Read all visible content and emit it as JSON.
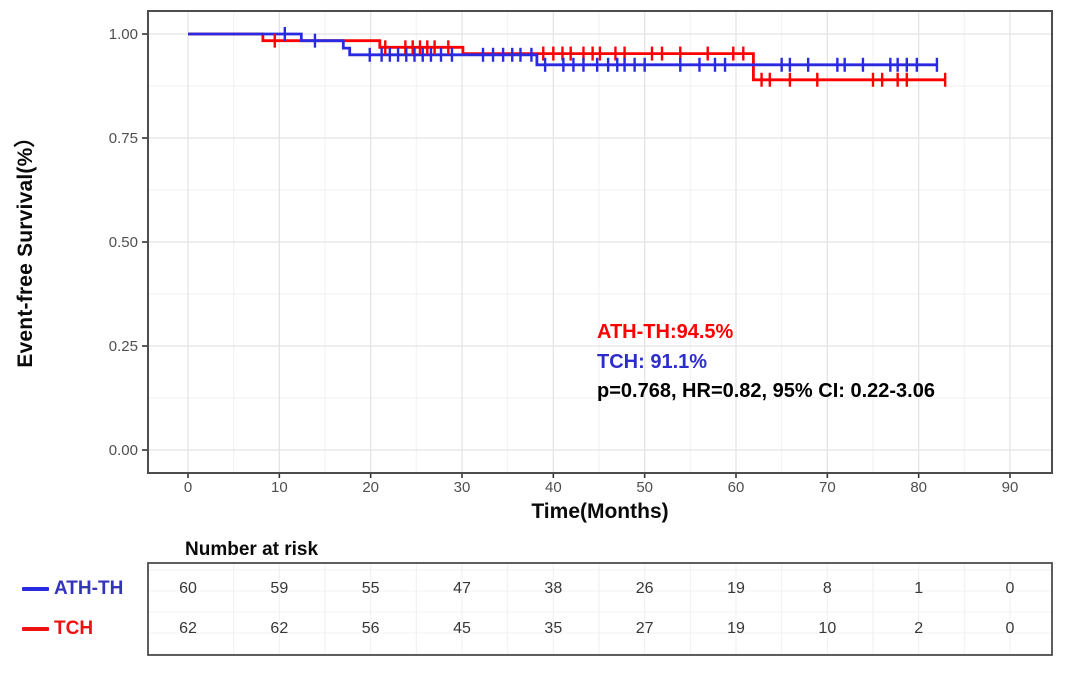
{
  "colors": {
    "red_line": "#ff0000",
    "blue_line": "#2a2ae0",
    "blue_legend_text": "#3434bb",
    "blue_annotation_text": "#2d2dc9",
    "panel_border": "#4d4d4d",
    "grid_major": "#e4e4e4",
    "grid_minor": "#f1f1f1",
    "tick_label": "#4f4f4f"
  },
  "chart_data": {
    "type": "line",
    "subtype": "kaplan-meier-step",
    "title": "",
    "xlabel": "Time(Months)",
    "ylabel": "Event-free Survival(%）",
    "xlim": [
      -4.4,
      94.6
    ],
    "ylim": [
      -0.057,
      1.057
    ],
    "grid": true,
    "legend_position": "bottom-left (next to risk table)",
    "x_ticks": [
      0,
      10,
      20,
      30,
      40,
      50,
      60,
      70,
      80,
      90
    ],
    "y_ticks": [
      {
        "value": 1.0,
        "label": "1.00"
      },
      {
        "value": 0.75,
        "label": "0.75"
      },
      {
        "value": 0.5,
        "label": "0.50"
      },
      {
        "value": 0.25,
        "label": "0.25"
      },
      {
        "value": 0.0,
        "label": "0.00"
      }
    ],
    "series": [
      {
        "name": "TCH",
        "color": "#ff0000",
        "step_points": [
          [
            0,
            1.0
          ],
          [
            8.2,
            1.0
          ],
          [
            8.2,
            0.984
          ],
          [
            21.0,
            0.984
          ],
          [
            21.0,
            0.968
          ],
          [
            30.1,
            0.968
          ],
          [
            30.1,
            0.953
          ],
          [
            61.9,
            0.953
          ],
          [
            61.9,
            0.89
          ],
          [
            82.9,
            0.89
          ]
        ],
        "censor_marks": [
          [
            9.5,
            0.984
          ],
          [
            21.6,
            0.968
          ],
          [
            23.8,
            0.968
          ],
          [
            24.6,
            0.968
          ],
          [
            25.4,
            0.968
          ],
          [
            26.2,
            0.968
          ],
          [
            27.0,
            0.968
          ],
          [
            28.5,
            0.968
          ],
          [
            38.9,
            0.953
          ],
          [
            40.0,
            0.953
          ],
          [
            41.0,
            0.953
          ],
          [
            41.9,
            0.953
          ],
          [
            43.3,
            0.953
          ],
          [
            44.3,
            0.953
          ],
          [
            45.1,
            0.953
          ],
          [
            46.8,
            0.953
          ],
          [
            47.8,
            0.953
          ],
          [
            50.8,
            0.953
          ],
          [
            51.9,
            0.953
          ],
          [
            53.9,
            0.953
          ],
          [
            56.9,
            0.953
          ],
          [
            59.7,
            0.953
          ],
          [
            60.8,
            0.953
          ],
          [
            62.8,
            0.89
          ],
          [
            63.7,
            0.89
          ],
          [
            65.9,
            0.89
          ],
          [
            68.9,
            0.89
          ],
          [
            75.0,
            0.89
          ],
          [
            76.0,
            0.89
          ],
          [
            77.7,
            0.89
          ],
          [
            78.7,
            0.89
          ],
          [
            82.9,
            0.89
          ]
        ]
      },
      {
        "name": "ATH-TH",
        "color": "#2a2ae0",
        "step_points": [
          [
            0,
            1.0
          ],
          [
            12.4,
            1.0
          ],
          [
            12.4,
            0.984
          ],
          [
            17.0,
            0.984
          ],
          [
            17.0,
            0.966
          ],
          [
            17.7,
            0.966
          ],
          [
            17.7,
            0.95
          ],
          [
            38.2,
            0.95
          ],
          [
            38.2,
            0.926
          ],
          [
            82.0,
            0.926
          ]
        ],
        "censor_marks": [
          [
            10.6,
            1.0
          ],
          [
            13.9,
            0.984
          ],
          [
            19.9,
            0.95
          ],
          [
            21.2,
            0.95
          ],
          [
            22.1,
            0.95
          ],
          [
            23.0,
            0.95
          ],
          [
            23.9,
            0.95
          ],
          [
            24.8,
            0.95
          ],
          [
            25.7,
            0.95
          ],
          [
            26.6,
            0.95
          ],
          [
            27.7,
            0.95
          ],
          [
            28.9,
            0.95
          ],
          [
            32.3,
            0.95
          ],
          [
            33.4,
            0.95
          ],
          [
            34.5,
            0.95
          ],
          [
            35.5,
            0.95
          ],
          [
            36.4,
            0.95
          ],
          [
            37.6,
            0.95
          ],
          [
            39.1,
            0.926
          ],
          [
            41.1,
            0.926
          ],
          [
            42.2,
            0.926
          ],
          [
            43.3,
            0.926
          ],
          [
            44.8,
            0.926
          ],
          [
            46.0,
            0.926
          ],
          [
            47.0,
            0.926
          ],
          [
            47.8,
            0.926
          ],
          [
            48.9,
            0.926
          ],
          [
            50.0,
            0.926
          ],
          [
            53.9,
            0.926
          ],
          [
            56.0,
            0.926
          ],
          [
            57.7,
            0.926
          ],
          [
            58.8,
            0.926
          ],
          [
            65.0,
            0.926
          ],
          [
            65.9,
            0.926
          ],
          [
            67.9,
            0.926
          ],
          [
            71.1,
            0.926
          ],
          [
            71.9,
            0.926
          ],
          [
            73.9,
            0.926
          ],
          [
            76.9,
            0.926
          ],
          [
            77.7,
            0.926
          ],
          [
            78.7,
            0.926
          ],
          [
            79.8,
            0.926
          ],
          [
            82.0,
            0.926
          ]
        ]
      }
    ]
  },
  "annotation": {
    "line1": {
      "text": "ATH-TH:94.5%",
      "color": "#ff0000"
    },
    "line2": {
      "text": "TCH: 91.1%",
      "color": "#2d2dc9"
    },
    "line3": {
      "text": "p=0.768, HR=0.82, 95% CI: 0.22-3.06",
      "color": "#000000"
    }
  },
  "risk_table": {
    "title": "Number at risk",
    "time_points": [
      0,
      10,
      20,
      30,
      40,
      50,
      60,
      70,
      80,
      90
    ],
    "rows": [
      {
        "label": "ATH-TH",
        "color": "#3434bb",
        "line_color": "#2a2ae0",
        "values": [
          60,
          59,
          55,
          47,
          38,
          26,
          19,
          8,
          1,
          0
        ]
      },
      {
        "label": "TCH",
        "color": "#ee1111",
        "line_color": "#ee1111",
        "values": [
          62,
          62,
          56,
          45,
          35,
          27,
          19,
          10,
          2,
          0
        ]
      }
    ]
  }
}
